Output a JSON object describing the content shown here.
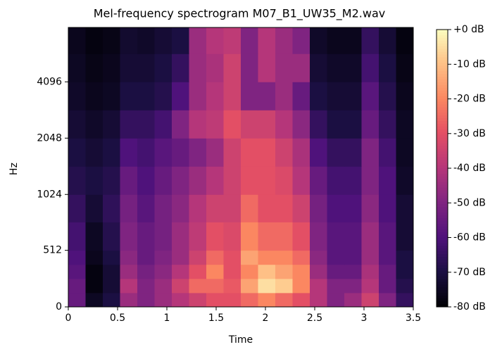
{
  "chart_data": {
    "type": "spectrogram",
    "title": "Mel-frequency spectrogram M07_B1_UW35_M2.wav",
    "xlabel": "Time",
    "ylabel": "Hz",
    "xlim": [
      0,
      3.5
    ],
    "xticks": [
      0,
      0.5,
      1,
      1.5,
      2,
      2.5,
      3,
      3.5
    ],
    "ylim": [
      0,
      8000
    ],
    "yscale": "symlog",
    "linthresh": 1000,
    "yticks": [
      0,
      512,
      1024,
      2048,
      4096
    ],
    "colormap": "magma",
    "clim": [
      -80,
      0
    ],
    "cticks": [
      {
        "value": 0,
        "label": "+0 dB"
      },
      {
        "value": -10,
        "label": "-10 dB"
      },
      {
        "value": -20,
        "label": "-20 dB"
      },
      {
        "value": -30,
        "label": "-30 dB"
      },
      {
        "value": -40,
        "label": "-40 dB"
      },
      {
        "value": -50,
        "label": "-50 dB"
      },
      {
        "value": -60,
        "label": "-60 dB"
      },
      {
        "value": -70,
        "label": "-70 dB"
      },
      {
        "value": -80,
        "label": "-80 dB"
      }
    ],
    "time_bins": [
      0,
      0.175,
      0.35,
      0.525,
      0.7,
      0.875,
      1.05,
      1.225,
      1.4,
      1.575,
      1.75,
      1.925,
      2.1,
      2.275,
      2.45,
      2.625,
      2.8,
      2.975,
      3.15,
      3.325,
      3.5
    ],
    "freq_bins": [
      0,
      128,
      256,
      384,
      512,
      768,
      1024,
      1448,
      2048,
      2896,
      4096,
      5793,
      8000
    ],
    "z": [
      [
        -55,
        -75,
        -70,
        -45,
        -50,
        -45,
        -40,
        -35,
        -30,
        -30,
        -25,
        -20,
        -25,
        -30,
        -40,
        -50,
        -45,
        -35,
        -50,
        -65
      ],
      [
        -55,
        -78,
        -72,
        -40,
        -50,
        -45,
        -35,
        -25,
        -25,
        -28,
        -15,
        -5,
        -8,
        -20,
        -40,
        -50,
        -50,
        -40,
        -55,
        -68
      ],
      [
        -58,
        -78,
        -72,
        -45,
        -52,
        -48,
        -40,
        -30,
        -20,
        -30,
        -20,
        -10,
        -15,
        -20,
        -45,
        -55,
        -55,
        -42,
        -55,
        -70
      ],
      [
        -60,
        -76,
        -70,
        -48,
        -55,
        -50,
        -45,
        -35,
        -25,
        -30,
        -15,
        -20,
        -20,
        -25,
        -48,
        -58,
        -58,
        -45,
        -58,
        -70
      ],
      [
        -62,
        -75,
        -68,
        -50,
        -55,
        -52,
        -45,
        -38,
        -30,
        -32,
        -20,
        -25,
        -25,
        -30,
        -50,
        -58,
        -58,
        -45,
        -58,
        -72
      ],
      [
        -65,
        -72,
        -66,
        -52,
        -58,
        -52,
        -48,
        -40,
        -35,
        -35,
        -25,
        -30,
        -30,
        -35,
        -52,
        -60,
        -60,
        -48,
        -60,
        -72
      ],
      [
        -68,
        -70,
        -68,
        -55,
        -60,
        -55,
        -50,
        -45,
        -40,
        -35,
        -30,
        -30,
        -32,
        -40,
        -55,
        -62,
        -62,
        -50,
        -60,
        -74
      ],
      [
        -70,
        -72,
        -70,
        -60,
        -62,
        -58,
        -55,
        -50,
        -45,
        -35,
        -30,
        -30,
        -35,
        -42,
        -60,
        -65,
        -65,
        -50,
        -62,
        -75
      ],
      [
        -72,
        -74,
        -72,
        -65,
        -65,
        -62,
        -50,
        -40,
        -38,
        -30,
        -35,
        -35,
        -40,
        -48,
        -65,
        -70,
        -70,
        -55,
        -65,
        -75
      ],
      [
        -74,
        -76,
        -75,
        -70,
        -70,
        -68,
        -60,
        -45,
        -40,
        -35,
        -50,
        -50,
        -45,
        -55,
        -70,
        -72,
        -72,
        -58,
        -68,
        -76
      ],
      [
        -75,
        -77,
        -76,
        -72,
        -72,
        -70,
        -65,
        -45,
        -42,
        -35,
        -50,
        -40,
        -45,
        -45,
        -72,
        -74,
        -74,
        -62,
        -70,
        -77
      ],
      [
        -76,
        -78,
        -77,
        -73,
        -74,
        -72,
        -70,
        -45,
        -40,
        -38,
        -50,
        -40,
        -45,
        -50,
        -74,
        -76,
        -76,
        -65,
        -72,
        -78
      ]
    ]
  }
}
